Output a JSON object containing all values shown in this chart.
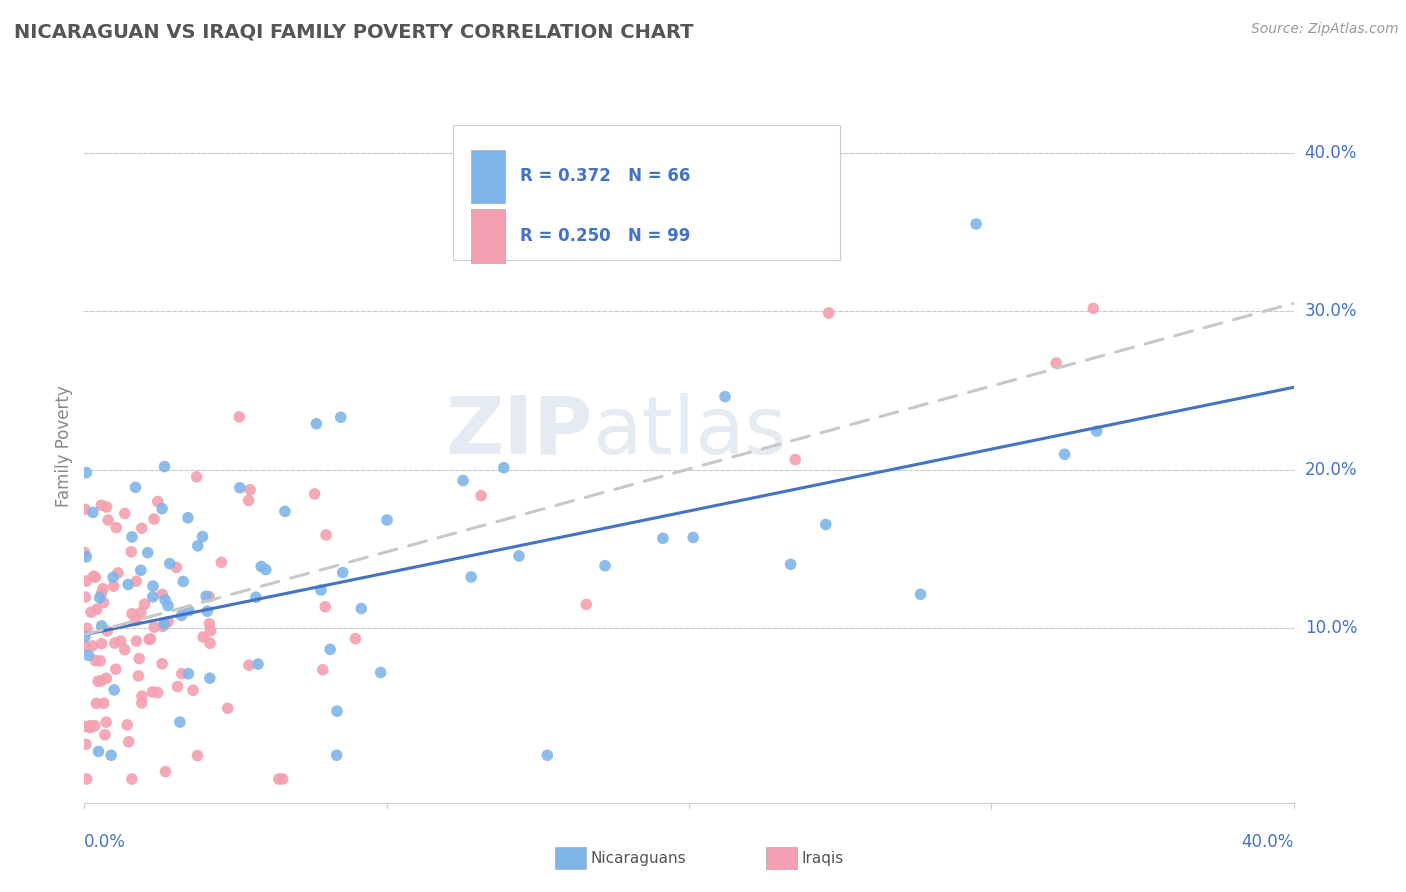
{
  "title": "NICARAGUAN VS IRAQI FAMILY POVERTY CORRELATION CHART",
  "source": "Source: ZipAtlas.com",
  "ylabel": "Family Poverty",
  "ytick_vals": [
    0.1,
    0.2,
    0.3,
    0.4
  ],
  "ytick_labels": [
    "10.0%",
    "20.0%",
    "30.0%",
    "40.0%"
  ],
  "xlim": [
    0.0,
    0.4
  ],
  "ylim": [
    -0.01,
    0.44
  ],
  "color_nicaraguan": "#7EB5E8",
  "color_iraqi": "#F4A0B0",
  "color_line_nicaraguan": "#4472C4",
  "color_line_iraqi": "#C8C8C8",
  "background_color": "#FFFFFF",
  "grid_color": "#CCCCCC",
  "title_color": "#555555",
  "axis_label_color": "#888888",
  "tick_label_color": "#4472C4",
  "nic_line_x0": 0.0,
  "nic_line_y0": 0.096,
  "nic_line_x1": 0.4,
  "nic_line_y1": 0.252,
  "iraqi_line_x0": 0.0,
  "iraqi_line_y0": 0.096,
  "iraqi_line_x1": 0.4,
  "iraqi_line_y1": 0.305
}
